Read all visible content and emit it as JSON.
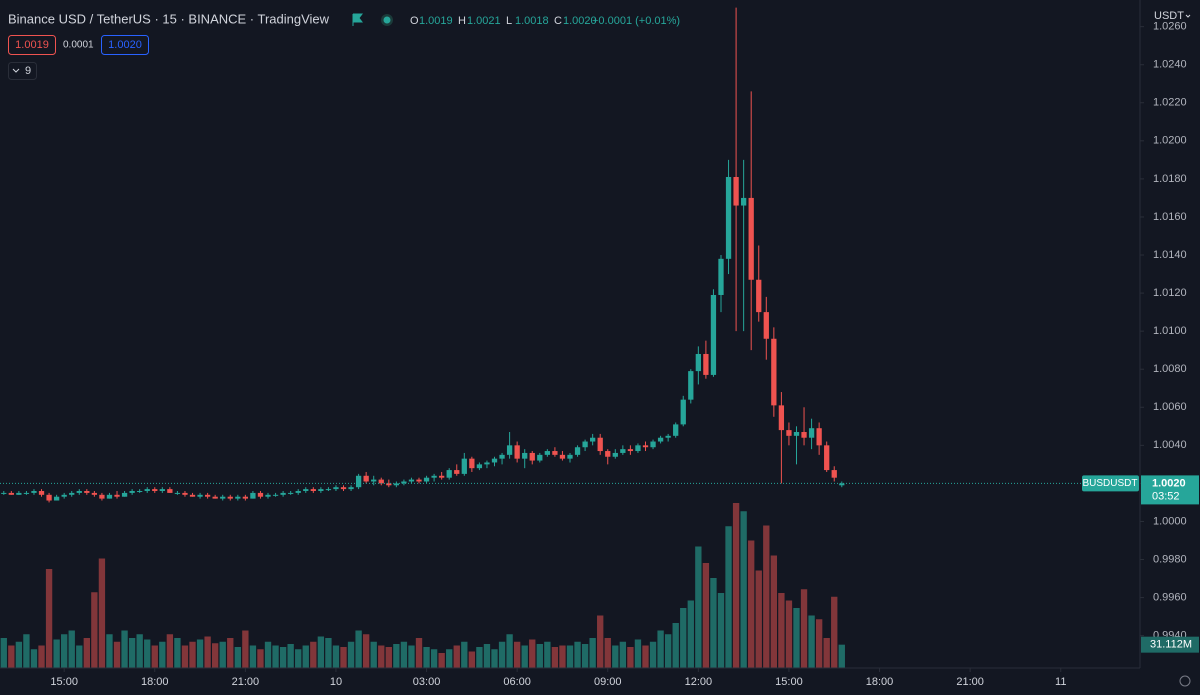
{
  "header": {
    "title": "Binance USD / TetherUS · 15 · BINANCE · TradingView",
    "ohlc": [
      {
        "label": "O",
        "value": "1.0019"
      },
      {
        "label": "H",
        "value": "1.0021"
      },
      {
        "label": "L",
        "value": "1.0018"
      },
      {
        "label": "C",
        "value": "1.0020"
      }
    ],
    "change": "+0.0001 (+0.01%)",
    "bid": "1.0019",
    "spread": "0.0001",
    "ask": "1.0020",
    "indicators": "9",
    "currency": "USDT"
  },
  "price_tag": {
    "symbol": "BUSDUSDT",
    "countdown": "03:52"
  },
  "chart_data": {
    "type": "candlestick",
    "up_color": "#26a69a",
    "down_color": "#ef5350",
    "volume_up_color": "#1f6b66",
    "volume_down_color": "#82363a",
    "ylim": [
      0.9923,
      1.0274
    ],
    "yticks": [
      {
        "value": 0.994,
        "label": "0.9940"
      },
      {
        "value": 0.996,
        "label": "0.9960"
      },
      {
        "value": 0.998,
        "label": "0.9980"
      },
      {
        "value": 1.0,
        "label": "1.0000"
      },
      {
        "value": 1.002,
        "label": "1.0020"
      },
      {
        "value": 1.004,
        "label": "1.0040"
      },
      {
        "value": 1.006,
        "label": "1.0060"
      },
      {
        "value": 1.008,
        "label": "1.0080"
      },
      {
        "value": 1.01,
        "label": "1.0100"
      },
      {
        "value": 1.012,
        "label": "1.0120"
      },
      {
        "value": 1.014,
        "label": "1.0140"
      },
      {
        "value": 1.016,
        "label": "1.0160"
      },
      {
        "value": 1.018,
        "label": "1.0180"
      },
      {
        "value": 1.02,
        "label": "1.0200"
      },
      {
        "value": 1.022,
        "label": "1.0220"
      },
      {
        "value": 1.024,
        "label": "1.0240"
      },
      {
        "value": 1.026,
        "label": "1.0260"
      }
    ],
    "xlim": [
      -0.5,
      150.5
    ],
    "xticks": [
      {
        "value": 8,
        "label": "15:00"
      },
      {
        "value": 20,
        "label": "18:00"
      },
      {
        "value": 32,
        "label": "21:00"
      },
      {
        "value": 44,
        "label": "10"
      },
      {
        "value": 56,
        "label": "03:00"
      },
      {
        "value": 68,
        "label": "06:00"
      },
      {
        "value": 80,
        "label": "09:00"
      },
      {
        "value": 92,
        "label": "12:00"
      },
      {
        "value": 104,
        "label": "15:00"
      },
      {
        "value": 116,
        "label": "18:00"
      },
      {
        "value": 128,
        "label": "21:00"
      },
      {
        "value": 140,
        "label": "11"
      }
    ],
    "last_price": {
      "value": 1.002,
      "label": "1.0020"
    },
    "volume_label": "31.112M",
    "ohlc": [
      [
        1.0015,
        1.0016,
        1.0014,
        1.0015
      ],
      [
        1.0015,
        1.0016,
        1.0014,
        1.0014
      ],
      [
        1.0014,
        1.0016,
        1.0014,
        1.0015
      ],
      [
        1.0015,
        1.0016,
        1.0014,
        1.0015
      ],
      [
        1.0015,
        1.0017,
        1.0014,
        1.0016
      ],
      [
        1.0016,
        1.0017,
        1.0013,
        1.0014
      ],
      [
        1.0014,
        1.0015,
        1.001,
        1.0011
      ],
      [
        1.0011,
        1.0014,
        1.0011,
        1.0013
      ],
      [
        1.0013,
        1.0015,
        1.0012,
        1.0014
      ],
      [
        1.0014,
        1.0016,
        1.0013,
        1.0015
      ],
      [
        1.0015,
        1.0017,
        1.0014,
        1.0016
      ],
      [
        1.0016,
        1.0017,
        1.0014,
        1.0015
      ],
      [
        1.0015,
        1.0016,
        1.0013,
        1.0014
      ],
      [
        1.0014,
        1.0015,
        1.0011,
        1.0012
      ],
      [
        1.0012,
        1.0015,
        1.0012,
        1.0014
      ],
      [
        1.0014,
        1.0016,
        1.0012,
        1.0013
      ],
      [
        1.0013,
        1.0016,
        1.0013,
        1.0015
      ],
      [
        1.0015,
        1.0017,
        1.0014,
        1.0016
      ],
      [
        1.0016,
        1.0017,
        1.0015,
        1.0016
      ],
      [
        1.0016,
        1.0018,
        1.0015,
        1.0017
      ],
      [
        1.0017,
        1.0018,
        1.0015,
        1.0016
      ],
      [
        1.0016,
        1.0018,
        1.0015,
        1.0017
      ],
      [
        1.0017,
        1.0018,
        1.0015,
        1.0015
      ],
      [
        1.0015,
        1.0016,
        1.0014,
        1.0015
      ],
      [
        1.0015,
        1.0016,
        1.0013,
        1.0014
      ],
      [
        1.0014,
        1.0015,
        1.0013,
        1.0013
      ],
      [
        1.0013,
        1.0015,
        1.0012,
        1.0014
      ],
      [
        1.0014,
        1.0015,
        1.0012,
        1.0013
      ],
      [
        1.0013,
        1.0014,
        1.0012,
        1.0012
      ],
      [
        1.0012,
        1.0014,
        1.0011,
        1.0013
      ],
      [
        1.0013,
        1.0014,
        1.0011,
        1.0012
      ],
      [
        1.0012,
        1.0014,
        1.0011,
        1.0013
      ],
      [
        1.0013,
        1.0014,
        1.0011,
        1.0012
      ],
      [
        1.0012,
        1.0016,
        1.0012,
        1.0015
      ],
      [
        1.0015,
        1.0016,
        1.0012,
        1.0013
      ],
      [
        1.0013,
        1.0015,
        1.0012,
        1.0014
      ],
      [
        1.0014,
        1.0015,
        1.0013,
        1.0014
      ],
      [
        1.0014,
        1.0016,
        1.0013,
        1.0015
      ],
      [
        1.0015,
        1.0016,
        1.0014,
        1.0015
      ],
      [
        1.0015,
        1.0017,
        1.0014,
        1.0016
      ],
      [
        1.0016,
        1.0018,
        1.0015,
        1.0017
      ],
      [
        1.0017,
        1.0018,
        1.0015,
        1.0016
      ],
      [
        1.0016,
        1.0018,
        1.0015,
        1.0017
      ],
      [
        1.0017,
        1.0018,
        1.0016,
        1.0017
      ],
      [
        1.0017,
        1.0019,
        1.0016,
        1.0018
      ],
      [
        1.0018,
        1.0019,
        1.0016,
        1.0017
      ],
      [
        1.0017,
        1.0019,
        1.0016,
        1.0018
      ],
      [
        1.0018,
        1.0025,
        1.0017,
        1.0024
      ],
      [
        1.0024,
        1.0026,
        1.002,
        1.0021
      ],
      [
        1.0021,
        1.0024,
        1.0019,
        1.0022
      ],
      [
        1.0022,
        1.0023,
        1.0019,
        1.002
      ],
      [
        1.002,
        1.0022,
        1.0018,
        1.0019
      ],
      [
        1.0019,
        1.0021,
        1.0018,
        1.002
      ],
      [
        1.002,
        1.0022,
        1.0019,
        1.0021
      ],
      [
        1.0021,
        1.0023,
        1.002,
        1.0022
      ],
      [
        1.0022,
        1.0023,
        1.002,
        1.0021
      ],
      [
        1.0021,
        1.0024,
        1.002,
        1.0023
      ],
      [
        1.0023,
        1.0025,
        1.0021,
        1.0024
      ],
      [
        1.0024,
        1.0026,
        1.0022,
        1.0023
      ],
      [
        1.0023,
        1.0028,
        1.0022,
        1.0027
      ],
      [
        1.0027,
        1.003,
        1.0024,
        1.0025
      ],
      [
        1.0025,
        1.0036,
        1.0024,
        1.0033
      ],
      [
        1.0033,
        1.0034,
        1.0026,
        1.0028
      ],
      [
        1.0028,
        1.0031,
        1.0027,
        1.003
      ],
      [
        1.003,
        1.0032,
        1.0028,
        1.0031
      ],
      [
        1.0031,
        1.0034,
        1.0029,
        1.0033
      ],
      [
        1.0033,
        1.0036,
        1.003,
        1.0035
      ],
      [
        1.0035,
        1.0047,
        1.0033,
        1.004
      ],
      [
        1.004,
        1.0042,
        1.0031,
        1.0033
      ],
      [
        1.0033,
        1.0038,
        1.0028,
        1.0036
      ],
      [
        1.0036,
        1.0037,
        1.003,
        1.0032
      ],
      [
        1.0032,
        1.0036,
        1.0031,
        1.0035
      ],
      [
        1.0035,
        1.0038,
        1.0034,
        1.0037
      ],
      [
        1.0037,
        1.0039,
        1.0034,
        1.0035
      ],
      [
        1.0035,
        1.0037,
        1.0032,
        1.0033
      ],
      [
        1.0033,
        1.0036,
        1.0031,
        1.0035
      ],
      [
        1.0035,
        1.004,
        1.0034,
        1.0039
      ],
      [
        1.0039,
        1.0043,
        1.0037,
        1.0042
      ],
      [
        1.0042,
        1.0046,
        1.004,
        1.0044
      ],
      [
        1.0044,
        1.0046,
        1.0035,
        1.0037
      ],
      [
        1.0037,
        1.0038,
        1.003,
        1.0034
      ],
      [
        1.0034,
        1.0038,
        1.0033,
        1.0036
      ],
      [
        1.0036,
        1.004,
        1.0035,
        1.0038
      ],
      [
        1.0038,
        1.004,
        1.0035,
        1.0037
      ],
      [
        1.0037,
        1.0041,
        1.0036,
        1.004
      ],
      [
        1.004,
        1.0042,
        1.0037,
        1.0039
      ],
      [
        1.0039,
        1.0043,
        1.0038,
        1.0042
      ],
      [
        1.0042,
        1.0045,
        1.0041,
        1.0044
      ],
      [
        1.0044,
        1.0046,
        1.0042,
        1.0045
      ],
      [
        1.0045,
        1.0052,
        1.0044,
        1.0051
      ],
      [
        1.0051,
        1.0066,
        1.005,
        1.0064
      ],
      [
        1.0064,
        1.008,
        1.0062,
        1.0079
      ],
      [
        1.0079,
        1.0092,
        1.0072,
        1.0088
      ],
      [
        1.0088,
        1.0095,
        1.0075,
        1.0077
      ],
      [
        1.0077,
        1.0122,
        1.0076,
        1.0119
      ],
      [
        1.0119,
        1.014,
        1.011,
        1.0138
      ],
      [
        1.0138,
        1.019,
        1.013,
        1.0181
      ],
      [
        1.0181,
        1.027,
        1.01,
        1.0166
      ],
      [
        1.0166,
        1.019,
        1.01,
        1.017
      ],
      [
        1.017,
        1.0226,
        1.009,
        1.0127
      ],
      [
        1.0127,
        1.0145,
        1.0105,
        1.011
      ],
      [
        1.011,
        1.0118,
        1.0085,
        1.0096
      ],
      [
        1.0096,
        1.0102,
        1.0055,
        1.0061
      ],
      [
        1.0061,
        1.0068,
        1.002,
        1.0048
      ],
      [
        1.0048,
        1.0052,
        1.004,
        1.0045
      ],
      [
        1.0045,
        1.005,
        1.003,
        1.0047
      ],
      [
        1.0047,
        1.006,
        1.004,
        1.0044
      ],
      [
        1.0044,
        1.0054,
        1.0038,
        1.0049
      ],
      [
        1.0049,
        1.0052,
        1.0035,
        1.004
      ],
      [
        1.004,
        1.0042,
        1.0026,
        1.0027
      ],
      [
        1.0027,
        1.0029,
        1.0021,
        1.0023
      ],
      [
        1.0019,
        1.0021,
        1.0018,
        1.002
      ]
    ],
    "volume": [
      40,
      30,
      35,
      45,
      25,
      30,
      132,
      38,
      45,
      50,
      30,
      40,
      101,
      146,
      45,
      35,
      50,
      40,
      45,
      38,
      30,
      35,
      45,
      40,
      30,
      35,
      38,
      42,
      33,
      35,
      40,
      28,
      50,
      30,
      25,
      35,
      30,
      28,
      32,
      25,
      30,
      35,
      42,
      40,
      30,
      28,
      35,
      50,
      45,
      35,
      30,
      28,
      32,
      35,
      30,
      40,
      28,
      25,
      20,
      25,
      30,
      35,
      22,
      28,
      32,
      25,
      35,
      45,
      35,
      30,
      38,
      32,
      35,
      28,
      30,
      30,
      35,
      32,
      40,
      70,
      40,
      30,
      35,
      28,
      38,
      30,
      35,
      50,
      45,
      60,
      80,
      90,
      162,
      140,
      120,
      100,
      189,
      220,
      209,
      170,
      130,
      190,
      150,
      100,
      90,
      80,
      105,
      70,
      65,
      40,
      95,
      31.112
    ]
  }
}
